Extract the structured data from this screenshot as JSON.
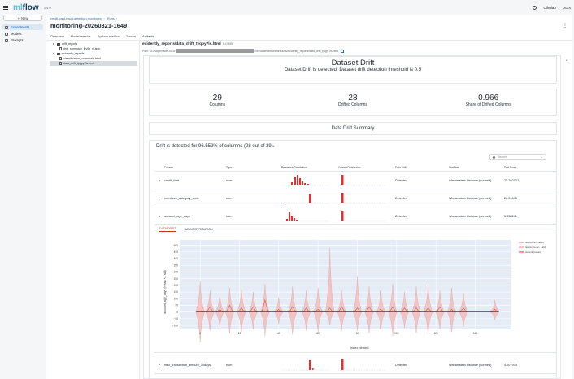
{
  "app": {
    "logo": "mlflow",
    "logo_accent": "ml",
    "logo_rest": "flow",
    "version": "3.4.0",
    "account": "Ollmlab",
    "docs": "Docs"
  },
  "sidebar": {
    "new_label": "New",
    "items": [
      {
        "label": "Experiments",
        "icon": "beaker-icon",
        "active": true
      },
      {
        "label": "Models",
        "icon": "models-icon",
        "active": false
      },
      {
        "label": "Prompts",
        "icon": "prompts-icon",
        "active": false
      }
    ]
  },
  "run": {
    "breadcrumb": [
      "credit-card-fraud-detection-monitoring",
      "Runs"
    ],
    "title": "monitoring-20260321-1649",
    "tabs": [
      "Overview",
      "Model metrics",
      "System metrics",
      "Traces",
      "Artifacts"
    ],
    "active_tab": "Artifacts"
  },
  "tree": [
    {
      "label": "drift_reports",
      "type": "folder",
      "depth": 1,
      "open": true
    },
    {
      "label": "drift_summary_lkv9b_sl.json",
      "type": "file",
      "depth": 2
    },
    {
      "label": "evidently_reports",
      "type": "folder",
      "depth": 1,
      "open": true
    },
    {
      "label": "classification_ocmnhaih.html",
      "type": "file",
      "depth": 2
    },
    {
      "label": "data_drift_tyqpy7ls.html",
      "type": "file",
      "depth": 2,
      "selected": true
    }
  ],
  "artifact": {
    "title": "evidently_reports/data_drift_tyqpy7ls.html",
    "size": "5.47MB",
    "path_prefix": "Path: s3://sagemaker-us-w",
    "path_suffix": "0/bedaae98bf4be/artifacts/evidently_reports/data_drift_tyqpy7ls.html"
  },
  "report": {
    "title": "Dataset Drift",
    "subtitle": "Dataset Drift is detected. Dataset drift detection threshold is 0.5",
    "stats": [
      {
        "value": "29",
        "label": "Columns"
      },
      {
        "value": "28",
        "label": "Drifted Columns"
      },
      {
        "value": "0.966",
        "label": "Share of Drifted Columns"
      }
    ],
    "summary_title": "Data Drift Summary",
    "drift_text": "Drift is detected for 96.552% of columns (28 out of 29).",
    "search_placeholder": "Search",
    "columns": [
      "Column",
      "Type",
      "Reference Distribution",
      "Current Distribution",
      "Data Drift",
      "Stat Test",
      "Drift Score"
    ],
    "rows": [
      {
        "chev": "›",
        "column": "credit_limit",
        "type": "num",
        "drift": "Detected",
        "test": "Wasserstein distance (normed)",
        "score": "75.292322"
      },
      {
        "chev": "›",
        "column": "merchant_category_code",
        "type": "num",
        "drift": "Detected",
        "test": "Wasserstein distance (normed)",
        "score": "28.54645"
      },
      {
        "chev": "⌄",
        "column": "account_age_days",
        "type": "num",
        "drift": "Detected",
        "test": "Wasserstein distance (normed)",
        "score": "5.858241"
      }
    ],
    "last_row": {
      "chev": "›",
      "column": "max_transaction_amount_30days",
      "type": "num",
      "drift": "Detected",
      "test": "Wasserstein distance (normed)",
      "score": "4.207933"
    },
    "subtabs": [
      "DATA DRIFT",
      "DATA DISTRIBUTION"
    ],
    "active_subtab": "DATA DRIFT"
  },
  "chart_data": {
    "type": "line",
    "xlabel": "Index binned",
    "ylabel": "account_age_days (mean +/- std)",
    "xlim": [
      -10,
      158
    ],
    "ylim": [
      -130,
      540
    ],
    "x_ticks": [
      0,
      20,
      40,
      60,
      80,
      100,
      120,
      140
    ],
    "y_ticks": [
      -100,
      -50,
      0,
      50,
      100,
      150,
      200,
      250,
      300,
      350,
      400,
      450,
      500
    ],
    "grid": true,
    "legend_position": "top-right",
    "series": [
      {
        "name": "reference (mean)",
        "color": "#d9534f"
      },
      {
        "name": "reference (+/- 1std)",
        "color": "#f4b6b3"
      },
      {
        "name": "current (mean)",
        "color": "#e00000"
      }
    ],
    "current_mean": 0,
    "spikes": [
      {
        "x": 0,
        "top": 230,
        "bottom": -230,
        "mean": 10
      },
      {
        "x": 5,
        "top": 160,
        "bottom": -140,
        "mean": 40
      },
      {
        "x": 10,
        "top": 130,
        "bottom": -110,
        "mean": 20
      },
      {
        "x": 15,
        "top": 180,
        "bottom": -160,
        "mean": 50
      },
      {
        "x": 21,
        "top": 170,
        "bottom": -150,
        "mean": 30
      },
      {
        "x": 27,
        "top": 150,
        "bottom": -130,
        "mean": 40
      },
      {
        "x": 33,
        "top": 210,
        "bottom": -180,
        "mean": 90
      },
      {
        "x": 40,
        "top": 110,
        "bottom": -90,
        "mean": 20
      },
      {
        "x": 47,
        "top": 190,
        "bottom": -170,
        "mean": 40
      },
      {
        "x": 54,
        "top": 160,
        "bottom": -140,
        "mean": 30
      },
      {
        "x": 60,
        "top": 180,
        "bottom": -150,
        "mean": 20
      },
      {
        "x": 66,
        "top": 480,
        "bottom": -100,
        "mean": 30
      },
      {
        "x": 72,
        "top": 160,
        "bottom": -140,
        "mean": 40
      },
      {
        "x": 80,
        "top": 270,
        "bottom": -140,
        "mean": 30
      },
      {
        "x": 86,
        "top": 190,
        "bottom": -160,
        "mean": 40
      },
      {
        "x": 92,
        "top": 160,
        "bottom": -130,
        "mean": 20
      },
      {
        "x": 98,
        "top": 210,
        "bottom": -180,
        "mean": 40
      },
      {
        "x": 104,
        "top": 150,
        "bottom": -120,
        "mean": 30
      },
      {
        "x": 110,
        "top": 190,
        "bottom": -160,
        "mean": 30
      },
      {
        "x": 116,
        "top": 200,
        "bottom": -170,
        "mean": 30
      },
      {
        "x": 122,
        "top": 160,
        "bottom": -130,
        "mean": 40
      },
      {
        "x": 128,
        "top": 180,
        "bottom": -150,
        "mean": 20
      },
      {
        "x": 134,
        "top": 140,
        "bottom": -110,
        "mean": 30
      },
      {
        "x": 150,
        "top": 90,
        "bottom": -60,
        "mean": 20
      }
    ]
  }
}
